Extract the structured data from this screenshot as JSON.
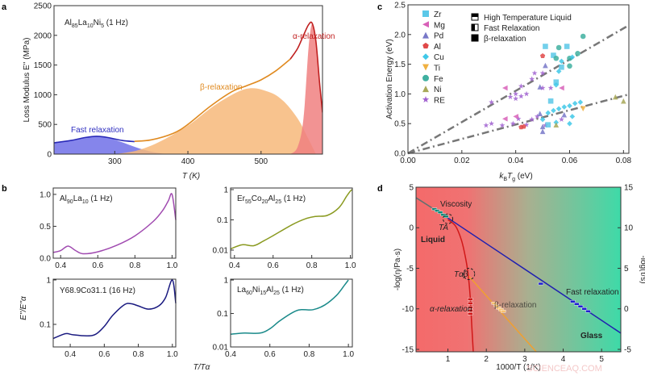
{
  "panel_labels": {
    "a": "a",
    "b": "b",
    "c": "c",
    "d": "d"
  },
  "watermark": "SCIENCEAQ.COM",
  "chart_data": [
    {
      "panel": "a",
      "type": "area",
      "annotation": "Al85La10Ni5 (1 Hz)",
      "xlabel": "T (K)",
      "ylabel": "Loss Modulus E'' (MPa)",
      "xlim": [
        217,
        584
      ],
      "ylim": [
        0,
        2500
      ],
      "xticks": [
        300,
        400,
        500
      ],
      "yticks": [
        0,
        500,
        1000,
        1500,
        2000,
        2500
      ],
      "series": [
        {
          "name": "Fast relaxation",
          "color": "#2a2ab8",
          "fill": "#7070e8",
          "curve_x": [
            217,
            240,
            260,
            275,
            290,
            310,
            327
          ],
          "curve_y": [
            190,
            230,
            280,
            300,
            280,
            230,
            210
          ],
          "fill_x": [
            217,
            240,
            260,
            275,
            290,
            310,
            330,
            350,
            370
          ],
          "fill_y": [
            190,
            230,
            280,
            300,
            280,
            200,
            110,
            40,
            0
          ]
        },
        {
          "name": "β-relaxation",
          "color": "#e08a20",
          "fill": "#f7b97a",
          "curve_x": [
            327,
            350,
            380,
            400,
            430,
            460,
            480,
            500,
            520,
            540
          ],
          "curve_y": [
            215,
            240,
            350,
            500,
            800,
            1050,
            1150,
            1250,
            1400,
            1600
          ],
          "fill_x": [
            300,
            330,
            360,
            400,
            440,
            480,
            510,
            530,
            550,
            565,
            575
          ],
          "fill_y": [
            0,
            60,
            200,
            480,
            850,
            1100,
            1050,
            900,
            600,
            250,
            0
          ]
        },
        {
          "name": "α-relaxation",
          "color": "#c02020",
          "fill": "#f08080",
          "curve_x": [
            540,
            550,
            558,
            565,
            570,
            575,
            580,
            584
          ],
          "curve_y": [
            1600,
            1780,
            2000,
            2180,
            2200,
            1900,
            1200,
            700
          ],
          "fill_x": [
            540,
            550,
            558,
            565,
            570,
            575,
            580,
            584
          ],
          "fill_y": [
            0,
            120,
            600,
            1800,
            2200,
            1900,
            1200,
            700
          ]
        }
      ]
    },
    {
      "panel": "b",
      "type": "line",
      "xlabel": "T/Tα",
      "ylabel": "E''/E''α",
      "subplots": [
        {
          "annotation": "Al90La10 (1 Hz)",
          "color": "#a04ab0",
          "scale": "linear",
          "xlim": [
            0.36,
            1.02
          ],
          "ylim": [
            0,
            1.1
          ],
          "xticks": [
            0.4,
            0.6,
            0.8,
            1.0
          ],
          "yticks": [
            0.0,
            0.5,
            1.0
          ],
          "ytick_labels": [
            "0.0",
            "0.5",
            "1.0"
          ],
          "x": [
            0.36,
            0.4,
            0.44,
            0.48,
            0.52,
            0.6,
            0.7,
            0.8,
            0.9,
            0.95,
            0.98,
            1.0,
            1.02
          ],
          "y": [
            0.09,
            0.12,
            0.19,
            0.12,
            0.07,
            0.1,
            0.2,
            0.35,
            0.58,
            0.75,
            0.9,
            1.0,
            0.6
          ]
        },
        {
          "annotation": "Er55Co20Al25 (1 Hz)",
          "color": "#8a9a20",
          "scale": "log",
          "xlim": [
            0.38,
            1.01
          ],
          "ylim": [
            0.0054,
            1.13
          ],
          "xticks": [
            0.4,
            0.6,
            0.8,
            1.0
          ],
          "yticks": [
            0.01,
            0.1,
            1
          ],
          "ytick_labels": [
            "0.01",
            "0.1",
            "1"
          ],
          "x": [
            0.38,
            0.44,
            0.5,
            0.55,
            0.6,
            0.7,
            0.77,
            0.82,
            0.88,
            0.94,
            0.98,
            1.0,
            1.01
          ],
          "y": [
            0.011,
            0.015,
            0.014,
            0.02,
            0.03,
            0.07,
            0.11,
            0.13,
            0.14,
            0.25,
            0.6,
            0.9,
            1.0
          ]
        },
        {
          "annotation": "Y68.9Co31.1 (16 Hz)",
          "color": "#1a1a80",
          "scale": "log",
          "xlim": [
            0.3,
            1.02
          ],
          "ylim": [
            0.031,
            1.04
          ],
          "xticks": [
            0.4,
            0.6,
            0.8,
            1.0
          ],
          "yticks": [
            0.1,
            1
          ],
          "ytick_labels": [
            "0.1",
            "1"
          ],
          "x": [
            0.3,
            0.35,
            0.38,
            0.42,
            0.5,
            0.55,
            0.6,
            0.65,
            0.72,
            0.76,
            0.8,
            0.86,
            0.92,
            0.96,
            1.0,
            1.02
          ],
          "y": [
            0.048,
            0.058,
            0.062,
            0.058,
            0.055,
            0.06,
            0.09,
            0.16,
            0.28,
            0.29,
            0.26,
            0.22,
            0.26,
            0.4,
            1.0,
            0.3
          ]
        },
        {
          "annotation": "La60Ni15Al25 (1 Hz)",
          "color": "#1a8a8a",
          "scale": "log",
          "xlim": [
            0.4,
            1.02
          ],
          "ylim": [
            0.01,
            1.06
          ],
          "xticks": [
            0.4,
            0.6,
            0.8,
            1.0
          ],
          "yticks": [
            0.01,
            0.1,
            1
          ],
          "ytick_labels": [
            "0.01",
            "0.1",
            "1"
          ],
          "x": [
            0.4,
            0.47,
            0.55,
            0.6,
            0.65,
            0.72,
            0.76,
            0.82,
            0.88,
            0.94,
            0.98,
            1.0
          ],
          "y": [
            0.024,
            0.026,
            0.026,
            0.035,
            0.06,
            0.11,
            0.13,
            0.13,
            0.18,
            0.35,
            0.7,
            1.0
          ]
        }
      ]
    },
    {
      "panel": "c",
      "type": "scatter",
      "xlabel_parts": [
        "k",
        "B",
        "T",
        "g",
        " (eV)"
      ],
      "ylabel": "Activation Energy (eV)",
      "xlim": [
        0,
        0.082
      ],
      "ylim": [
        0,
        2.5
      ],
      "xticks": [
        0.0,
        0.02,
        0.04,
        0.06,
        0.08
      ],
      "xtick_labels": [
        "0.00",
        "0.02",
        "0.04",
        "0.06",
        "0.08"
      ],
      "yticks": [
        0,
        0.5,
        1.0,
        1.5,
        2.0,
        2.5
      ],
      "ytick_labels": [
        "0.0",
        "0.5",
        "1.0",
        "1.5",
        "2.0",
        "2.5"
      ],
      "legend_location": "top-left",
      "elements": [
        {
          "name": "Zr",
          "color": "#5bc8e8",
          "marker": "square"
        },
        {
          "name": "Mg",
          "color": "#d860b8",
          "marker": "triangle-left"
        },
        {
          "name": "Pd",
          "color": "#7878c8",
          "marker": "triangle-up"
        },
        {
          "name": "Al",
          "color": "#e04848",
          "marker": "pentagon"
        },
        {
          "name": "Cu",
          "color": "#40c8e8",
          "marker": "diamond"
        },
        {
          "name": "Ti",
          "color": "#f0b040",
          "marker": "triangle-down"
        },
        {
          "name": "Fe",
          "color": "#40b0a0",
          "marker": "circle"
        },
        {
          "name": "Ni",
          "color": "#a8a858",
          "marker": "triangle-up"
        },
        {
          "name": "RE",
          "color": "#a060d0",
          "marker": "star"
        }
      ],
      "fill_legend": [
        {
          "name": "High Temperature Liquid",
          "style": "top-half"
        },
        {
          "name": "Fast Relaxation",
          "style": "left-half"
        },
        {
          "name": "β-relaxation",
          "style": "full"
        }
      ],
      "fit_lines": [
        {
          "slope": 26.3
        },
        {
          "slope": 12.1
        }
      ],
      "points": [
        [
          0.051,
          1.8,
          "Zr"
        ],
        [
          0.054,
          1.65,
          "Zr"
        ],
        [
          0.059,
          1.8,
          "Zr"
        ],
        [
          0.055,
          1.2,
          "Zr"
        ],
        [
          0.057,
          1.45,
          "Zr"
        ],
        [
          0.056,
          1.78,
          "Fe"
        ],
        [
          0.06,
          1.6,
          "Fe"
        ],
        [
          0.065,
          1.97,
          "Fe"
        ],
        [
          0.063,
          1.68,
          "Fe"
        ],
        [
          0.055,
          1.6,
          "Fe"
        ],
        [
          0.06,
          1.47,
          "Fe"
        ],
        [
          0.057,
          1.55,
          "Cu"
        ],
        [
          0.061,
          1.62,
          "Cu"
        ],
        [
          0.056,
          1.38,
          "Cu"
        ],
        [
          0.055,
          1.15,
          "Cu"
        ],
        [
          0.05,
          1.64,
          "Al"
        ],
        [
          0.051,
          1.48,
          "Pd"
        ],
        [
          0.049,
          1.12,
          "Pd"
        ],
        [
          0.036,
          1.1,
          "Mg"
        ],
        [
          0.057,
          1.1,
          "Mg"
        ],
        [
          0.031,
          0.86,
          "RE"
        ],
        [
          0.038,
          0.95,
          "RE"
        ],
        [
          0.04,
          0.92,
          "RE"
        ],
        [
          0.042,
          0.96,
          "RE"
        ],
        [
          0.046,
          1.25,
          "RE"
        ],
        [
          0.047,
          1.35,
          "RE"
        ],
        [
          0.05,
          1.35,
          "RE"
        ],
        [
          0.05,
          1.1,
          "RE"
        ],
        [
          0.053,
          1.1,
          "RE"
        ],
        [
          0.044,
          1.0,
          "RE"
        ],
        [
          0.04,
          1.0,
          "RE"
        ],
        [
          0.042,
          1.13,
          "RE"
        ],
        [
          0.029,
          0.47,
          "RE"
        ],
        [
          0.031,
          0.5,
          "RE"
        ],
        [
          0.035,
          0.47,
          "RE"
        ],
        [
          0.039,
          0.5,
          "RE"
        ],
        [
          0.041,
          0.58,
          "RE"
        ],
        [
          0.044,
          0.48,
          "RE"
        ],
        [
          0.046,
          0.57,
          "RE"
        ],
        [
          0.048,
          0.62,
          "RE"
        ],
        [
          0.051,
          0.47,
          "RE"
        ],
        [
          0.057,
          0.57,
          "RE"
        ],
        [
          0.036,
          0.58,
          "Mg"
        ],
        [
          0.04,
          0.62,
          "Mg"
        ],
        [
          0.042,
          0.44,
          "Al"
        ],
        [
          0.043,
          0.45,
          "Al"
        ],
        [
          0.05,
          0.37,
          "Pd"
        ],
        [
          0.05,
          0.45,
          "Pd"
        ],
        [
          0.049,
          0.67,
          "Pd"
        ],
        [
          0.058,
          0.65,
          "Pd"
        ],
        [
          0.052,
          0.68,
          "Cu"
        ],
        [
          0.054,
          0.72,
          "Cu"
        ],
        [
          0.056,
          0.75,
          "Cu"
        ],
        [
          0.058,
          0.78,
          "Cu"
        ],
        [
          0.06,
          0.8,
          "Cu"
        ],
        [
          0.062,
          0.84,
          "Cu"
        ],
        [
          0.064,
          0.86,
          "Cu"
        ],
        [
          0.061,
          0.62,
          "Cu"
        ],
        [
          0.06,
          0.5,
          "Cu"
        ],
        [
          0.055,
          0.52,
          "Cu"
        ],
        [
          0.05,
          0.57,
          "Cu"
        ],
        [
          0.053,
          0.88,
          "Zr"
        ],
        [
          0.052,
          0.48,
          "Zr"
        ],
        [
          0.065,
          0.75,
          "Ti"
        ],
        [
          0.055,
          0.48,
          "Ni"
        ],
        [
          0.077,
          0.95,
          "Ni"
        ],
        [
          0.08,
          0.88,
          "Ni"
        ]
      ]
    },
    {
      "panel": "d",
      "type": "line",
      "xlabel": "1000/T (1/K)",
      "ylabel": "-log(η/Pa·s)",
      "ylabel_right": "-log(τ/s)",
      "xlim": [
        0.17,
        5.5
      ],
      "ylim": [
        -15.3,
        5
      ],
      "ylim_right": [
        -5.3,
        15
      ],
      "xticks": [
        1,
        2,
        3,
        4,
        5
      ],
      "yticks": [
        -15,
        -10,
        -5,
        0,
        5
      ],
      "yticks_right": [
        -5,
        0,
        5,
        10,
        15
      ],
      "background_gradient": [
        "#f46a6a",
        "#3edaa8"
      ],
      "annotations": {
        "liquid": "Liquid",
        "glass": "Glass",
        "viscosity": "Viscosity",
        "alpha": "α-relaxation",
        "beta": "β-relaxation",
        "fast": "Fast relaxation",
        "ta": "TA",
        "tab": "Tαβ"
      },
      "series": [
        {
          "name": "Viscosity",
          "color": "#607070",
          "x": [
            0.17,
            1.0
          ],
          "y": [
            3.7,
            1.2
          ]
        },
        {
          "name": "Fast relaxation",
          "color": "#2020b0",
          "x": [
            1.0,
            5.5
          ],
          "y": [
            1.2,
            -13
          ]
        },
        {
          "name": "α-relaxation",
          "color": "#d01818",
          "x": [
            1.0,
            1.2,
            1.35,
            1.45,
            1.52,
            1.58,
            1.62,
            1.66
          ],
          "y": [
            1.0,
            0.2,
            -1.5,
            -3.5,
            -5.5,
            -8.5,
            -12,
            -15.3
          ]
        },
        {
          "name": "β-relaxation",
          "color": "#f0a030",
          "x": [
            1.55,
            3.3
          ],
          "y": [
            -6,
            -15.3
          ]
        }
      ],
      "markers": [
        {
          "series": "Viscosity",
          "color": "#108878",
          "x": [
            0.65,
            0.72,
            0.8,
            0.88,
            0.95
          ],
          "y": [
            2.3,
            2.1,
            1.9,
            1.6,
            1.4
          ]
        },
        {
          "series": "α-relaxation",
          "color": "#d01818",
          "x": [
            1.58,
            1.58,
            1.58,
            1.58,
            1.58
          ],
          "y": [
            -8.8,
            -9.3,
            -9.8,
            -10.2,
            -10.6
          ]
        },
        {
          "series": "β-relaxation",
          "color": "#f8c070",
          "x": [
            2.2,
            2.26,
            2.32,
            2.38,
            2.44
          ],
          "y": [
            -9.3,
            -9.6,
            -9.9,
            -10.1,
            -10.3
          ]
        },
        {
          "series": "Fast relaxation",
          "color": "#2020d0",
          "x": [
            3.42,
            4.25,
            4.35,
            4.45,
            4.55,
            4.65
          ],
          "y": [
            -6.9,
            -9.1,
            -9.4,
            -9.7,
            -10.0,
            -10.3
          ]
        }
      ]
    }
  ]
}
